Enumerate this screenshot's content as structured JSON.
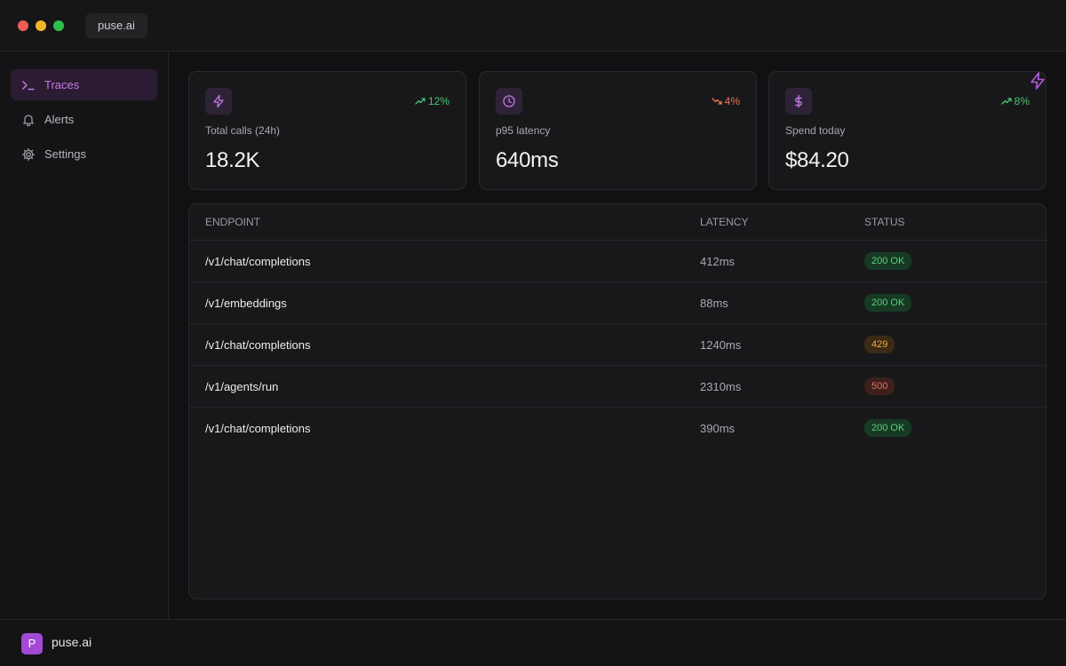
{
  "window": {
    "tab_title": "puse.ai"
  },
  "sidebar": {
    "items": [
      {
        "label": "Traces",
        "icon": "terminal-icon",
        "active": true
      },
      {
        "label": "Alerts",
        "icon": "bell-icon",
        "active": false
      },
      {
        "label": "Settings",
        "icon": "gear-icon",
        "active": false
      }
    ]
  },
  "footer": {
    "logo_letter": "P",
    "app_name": "puse.ai"
  },
  "cards": [
    {
      "label": "Total calls (24h)",
      "value": "18.2K",
      "trend": "12%",
      "trend_direction": "up",
      "icon": "bolt-icon"
    },
    {
      "label": "p95 latency",
      "value": "640ms",
      "trend": "4%",
      "trend_direction": "down",
      "icon": "clock-icon"
    },
    {
      "label": "Spend today",
      "value": "$84.20",
      "trend": "8%",
      "trend_direction": "up",
      "icon": "dollar-icon"
    }
  ],
  "table": {
    "headers": {
      "endpoint": "ENDPOINT",
      "latency": "LATENCY",
      "status": "STATUS"
    },
    "rows": [
      {
        "endpoint": "/v1/chat/completions",
        "latency": "412ms",
        "status": "200 OK",
        "status_kind": "ok"
      },
      {
        "endpoint": "/v1/embeddings",
        "latency": "88ms",
        "status": "200 OK",
        "status_kind": "ok"
      },
      {
        "endpoint": "/v1/chat/completions",
        "latency": "1240ms",
        "status": "429",
        "status_kind": "warn"
      },
      {
        "endpoint": "/v1/agents/run",
        "latency": "2310ms",
        "status": "500",
        "status_kind": "err"
      },
      {
        "endpoint": "/v1/chat/completions",
        "latency": "390ms",
        "status": "200 OK",
        "status_kind": "ok"
      }
    ]
  },
  "colors": {
    "accent": "#c47ae6",
    "brand": "#a349d6",
    "status_ok": "#58cf7f",
    "status_warn": "#f0a53c",
    "status_err": "#e4725f",
    "trend_up": "#4cc474",
    "trend_down": "#e8784d"
  }
}
